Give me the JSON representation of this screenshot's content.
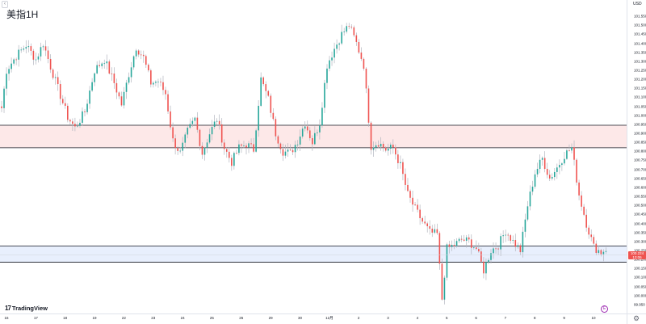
{
  "title": "美指1H",
  "currency": "USD",
  "watermark": "TradingView",
  "toolbar_toggle_label": "‹",
  "corner_icon": "gear-icon",
  "badge_icon_label": "E",
  "current_price": "100.224",
  "current_price_countdown": "13:06",
  "colors": {
    "up": "#26a69a",
    "down": "#ef5350",
    "resistance_zone": "#fde8e8",
    "support_zone": "#e8effd",
    "zone_border": "#131722"
  },
  "chart_data": {
    "type": "candlestick",
    "title": "美指1H",
    "ylabel": "USD",
    "ylim": [
      99.9,
      101.64
    ],
    "y_ticks": [
      "101.600",
      "101.550",
      "101.500",
      "101.450",
      "101.400",
      "101.350",
      "101.300",
      "101.250",
      "101.200",
      "101.150",
      "101.100",
      "101.050",
      "101.000",
      "100.950",
      "100.900",
      "100.850",
      "100.800",
      "100.750",
      "100.700",
      "100.650",
      "100.600",
      "100.550",
      "100.500",
      "100.450",
      "100.400",
      "100.350",
      "100.300",
      "100.250",
      "100.200",
      "100.150",
      "100.100",
      "100.050",
      "100.000",
      "99.950"
    ],
    "x_ticks": [
      "16",
      "17",
      "18",
      "19",
      "22",
      "23",
      "24",
      "25",
      "26",
      "29",
      "30",
      "12月",
      "2",
      "3",
      "4",
      "5",
      "6",
      "7",
      "8",
      "9",
      "10"
    ],
    "zones": [
      {
        "name": "resistance",
        "from": 100.82,
        "to": 100.945
      },
      {
        "name": "support",
        "from": 100.185,
        "to": 100.275
      }
    ],
    "last_price": 100.224,
    "grid": false,
    "legend": "none",
    "anchors": [
      [
        0,
        101.04
      ],
      [
        2,
        101.25
      ],
      [
        6,
        101.33
      ],
      [
        10,
        101.39
      ],
      [
        14,
        101.31
      ],
      [
        17,
        101.4
      ],
      [
        20,
        101.27
      ],
      [
        24,
        101.11
      ],
      [
        27,
        100.99
      ],
      [
        30,
        100.93
      ],
      [
        34,
        101.02
      ],
      [
        38,
        101.25
      ],
      [
        42,
        101.31
      ],
      [
        46,
        101.18
      ],
      [
        49,
        101.06
      ],
      [
        52,
        101.23
      ],
      [
        55,
        101.38
      ],
      [
        58,
        101.32
      ],
      [
        61,
        101.18
      ],
      [
        64,
        101.19
      ],
      [
        67,
        101.12
      ],
      [
        70,
        100.86
      ],
      [
        73,
        100.79
      ],
      [
        76,
        100.91
      ],
      [
        79,
        100.98
      ],
      [
        82,
        100.79
      ],
      [
        85,
        100.9
      ],
      [
        88,
        100.98
      ],
      [
        91,
        100.82
      ],
      [
        94,
        100.74
      ],
      [
        97,
        100.82
      ],
      [
        100,
        100.84
      ],
      [
        103,
        100.81
      ],
      [
        106,
        101.2
      ],
      [
        109,
        101.09
      ],
      [
        112,
        100.9
      ],
      [
        115,
        100.8
      ],
      [
        118,
        100.79
      ],
      [
        121,
        100.86
      ],
      [
        124,
        100.96
      ],
      [
        127,
        100.85
      ],
      [
        130,
        100.96
      ],
      [
        133,
        101.28
      ],
      [
        136,
        101.37
      ],
      [
        139,
        101.45
      ],
      [
        142,
        101.5
      ],
      [
        145,
        101.4
      ],
      [
        148,
        101.28
      ],
      [
        151,
        100.83
      ],
      [
        154,
        100.85
      ],
      [
        157,
        100.81
      ],
      [
        160,
        100.82
      ],
      [
        163,
        100.72
      ],
      [
        166,
        100.56
      ],
      [
        169,
        100.48
      ],
      [
        172,
        100.41
      ],
      [
        175,
        100.35
      ],
      [
        178,
        100.34
      ],
      [
        180,
        99.98
      ],
      [
        182,
        100.26
      ],
      [
        185,
        100.28
      ],
      [
        188,
        100.31
      ],
      [
        191,
        100.3
      ],
      [
        194,
        100.26
      ],
      [
        197,
        100.14
      ],
      [
        200,
        100.25
      ],
      [
        203,
        100.28
      ],
      [
        206,
        100.36
      ],
      [
        209,
        100.3
      ],
      [
        212,
        100.25
      ],
      [
        215,
        100.5
      ],
      [
        218,
        100.68
      ],
      [
        221,
        100.76
      ],
      [
        224,
        100.65
      ],
      [
        227,
        100.71
      ],
      [
        230,
        100.78
      ],
      [
        233,
        100.82
      ],
      [
        236,
        100.56
      ],
      [
        239,
        100.4
      ],
      [
        242,
        100.27
      ],
      [
        245,
        100.24
      ],
      [
        247,
        100.26
      ]
    ]
  }
}
